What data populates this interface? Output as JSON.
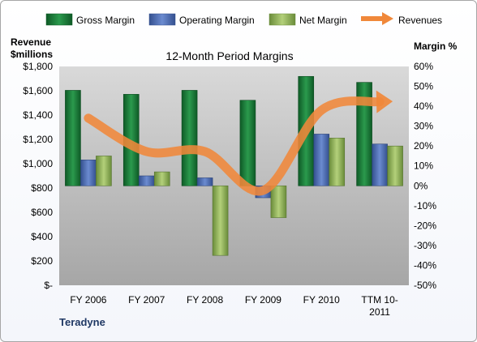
{
  "chart_data": {
    "type": "bar",
    "title": "12-Month Period Margins",
    "company": "Teradyne",
    "categories": [
      [
        "FY 2006"
      ],
      [
        "FY 2007"
      ],
      [
        "FY 2008"
      ],
      [
        "FY 2009"
      ],
      [
        "FY 2010"
      ],
      [
        "TTM 10-",
        "2011"
      ]
    ],
    "y_left": {
      "title": [
        "Revenue",
        "$millions"
      ],
      "range": [
        0,
        1800
      ],
      "tick_labels": [
        "$-",
        "$200",
        "$400",
        "$600",
        "$800",
        "$1,000",
        "$1,200",
        "$1,400",
        "$1,600",
        "$1,800"
      ]
    },
    "y_right": {
      "title": "Margin %",
      "range": [
        -50,
        60
      ],
      "tick_labels": [
        "-50%",
        "-40%",
        "-30%",
        "-20%",
        "-10%",
        "0%",
        "10%",
        "20%",
        "30%",
        "40%",
        "50%",
        "60%"
      ]
    },
    "series": [
      {
        "name": "Gross Margin",
        "axis": "right",
        "values": [
          48,
          46,
          48,
          43,
          55,
          52
        ],
        "color": "#1e7a3a"
      },
      {
        "name": "Operating Margin",
        "axis": "right",
        "values": [
          13,
          5,
          4,
          -6,
          26,
          21
        ],
        "color": "#4f6fb2"
      },
      {
        "name": "Net Margin",
        "axis": "right",
        "values": [
          15,
          7,
          -35,
          -16,
          24,
          20
        ],
        "color": "#8fb35a"
      },
      {
        "name": "Revenues",
        "axis": "left",
        "type": "line",
        "values": [
          1375,
          1100,
          1100,
          780,
          1440,
          1510
        ],
        "color": "#f0883a"
      }
    ],
    "legend_position": "top",
    "grid": false
  }
}
